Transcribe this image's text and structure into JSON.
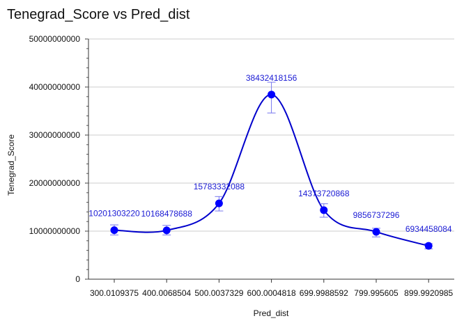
{
  "chart_data": {
    "type": "line",
    "title": "Tenegrad_Score vs Pred_dist",
    "xlabel": "Pred_dist",
    "ylabel": "Tenegrad_Score",
    "categories": [
      "300.0109375",
      "400.0068504",
      "500.0037329",
      "600.0004818",
      "699.9988592",
      "799.995605",
      "899.9920985"
    ],
    "series": [
      {
        "values": [
          10201303220,
          10168478688,
          15783332088,
          38432418156,
          14373720868,
          9856737296,
          6934458084
        ],
        "error_low": [
          9200000000,
          9200000000,
          14200000000,
          34600000000,
          12900000000,
          8800000000,
          6300000000
        ],
        "error_high": [
          11300000000,
          11200000000,
          17200000000,
          41000000000,
          15700000000,
          10600000000,
          7400000000
        ],
        "data_labels": [
          "10201303220",
          "10168478688",
          "15783332088",
          "38432418156",
          "14373720868",
          "9856737296",
          "6934458084"
        ]
      }
    ],
    "yticks": [
      "0",
      "10000000000",
      "20000000000",
      "30000000000",
      "40000000000",
      "50000000000"
    ],
    "ylim": [
      0,
      50000000000
    ],
    "grid": true,
    "colors": {
      "line": "#0000cc",
      "marker": "#0000ff",
      "error_bar": "#7777ee",
      "grid": "#cccccc",
      "label": "#1a1ad4"
    }
  }
}
